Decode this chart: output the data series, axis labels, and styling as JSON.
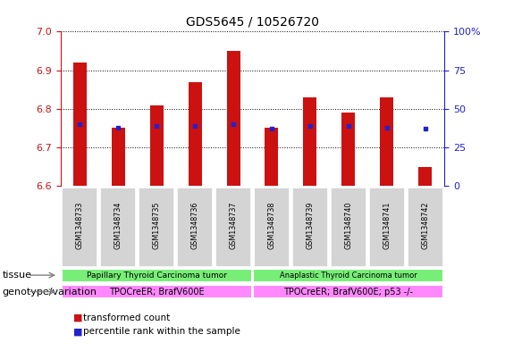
{
  "title": "GDS5645 / 10526720",
  "samples": [
    "GSM1348733",
    "GSM1348734",
    "GSM1348735",
    "GSM1348736",
    "GSM1348737",
    "GSM1348738",
    "GSM1348739",
    "GSM1348740",
    "GSM1348741",
    "GSM1348742"
  ],
  "transformed_count": [
    6.92,
    6.75,
    6.81,
    6.87,
    6.95,
    6.75,
    6.83,
    6.79,
    6.83,
    6.65
  ],
  "percentile_rank": [
    40,
    38,
    39,
    39,
    40,
    37,
    39,
    39,
    38,
    37
  ],
  "ylim_left": [
    6.6,
    7.0
  ],
  "ylim_right": [
    0,
    100
  ],
  "yticks_left": [
    6.6,
    6.7,
    6.8,
    6.9,
    7.0
  ],
  "yticks_right": [
    0,
    25,
    50,
    75,
    100
  ],
  "ytick_labels_right": [
    "0",
    "25",
    "50",
    "75",
    "100%"
  ],
  "bar_color": "#cc1111",
  "dot_color": "#2222cc",
  "baseline": 6.6,
  "tissue_group1": "Papillary Thyroid Carcinoma tumor",
  "tissue_group2": "Anaplastic Thyroid Carcinoma tumor",
  "genotype_group1": "TPOCreER; BrafV600E",
  "genotype_group2": "TPOCreER; BrafV600E; p53 -/-",
  "tissue_color": "#77ee77",
  "genotype_color": "#ff88ff",
  "bar_width": 0.35,
  "axis_color_left": "#cc1111",
  "axis_color_right": "#2222cc",
  "cell_bg": "#d4d4d4",
  "cell_sep_color": "white"
}
